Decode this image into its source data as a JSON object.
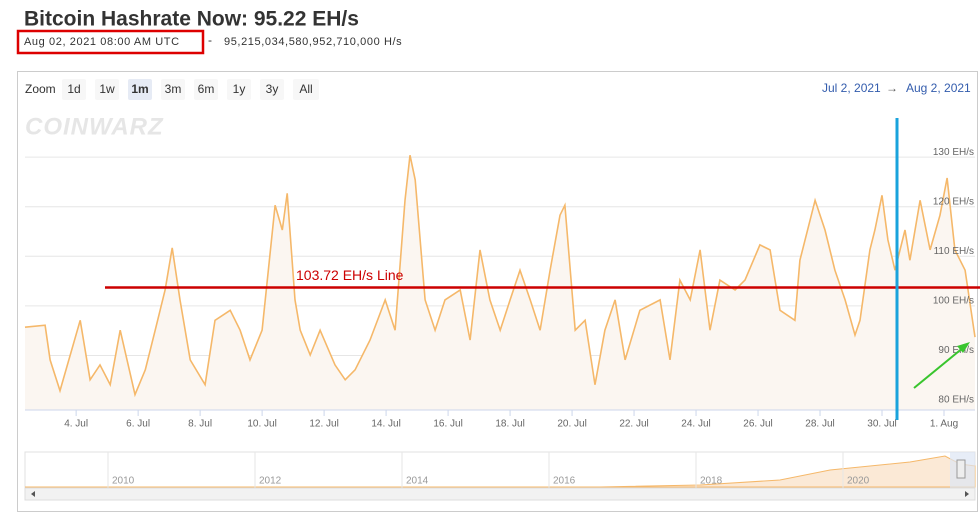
{
  "header": {
    "title": "Bitcoin Hashrate Now: 95.22 EH/s",
    "timestamp": "Aug 02, 2021 08:00 AM UTC",
    "separator": "-",
    "hashrate": "95,215,034,580,952,710,000 H/s"
  },
  "toolbar": {
    "zoom_label": "Zoom",
    "zoom_buttons": [
      "1d",
      "1w",
      "1m",
      "3m",
      "6m",
      "1y",
      "3y",
      "All"
    ],
    "selected": "1m",
    "range_from": "Jul 2, 2021",
    "range_arrow": "→",
    "range_to": "Aug 2, 2021"
  },
  "watermark": "COINWARZ",
  "navigator": {
    "labels": [
      "2010",
      "2012",
      "2014",
      "2016",
      "2018",
      "2020"
    ]
  },
  "chart_data": {
    "type": "line",
    "color": "#f5b86a",
    "fill": "#fbf6f1",
    "x": [
      2.35,
      3.0,
      3.16,
      3.48,
      4.13,
      4.45,
      4.77,
      5.1,
      5.42,
      5.9,
      6.23,
      6.55,
      6.87,
      7.1,
      7.35,
      7.68,
      8.16,
      8.48,
      8.97,
      9.29,
      9.61,
      10.0,
      10.42,
      10.65,
      10.81,
      11.06,
      11.23,
      11.55,
      11.87,
      12.35,
      12.68,
      13.0,
      13.48,
      13.97,
      14.29,
      14.61,
      14.77,
      14.94,
      15.26,
      15.58,
      15.9,
      16.39,
      16.71,
      17.03,
      17.35,
      17.68,
      18.0,
      18.32,
      18.65,
      18.97,
      19.29,
      19.61,
      19.77,
      20.1,
      20.42,
      20.74,
      21.06,
      21.39,
      21.71,
      22.19,
      22.84,
      23.16,
      23.48,
      23.81,
      24.13,
      24.45,
      24.77,
      25.26,
      25.58,
      26.06,
      26.39,
      26.71,
      27.19,
      27.35,
      27.84,
      28.16,
      28.48,
      28.81,
      29.13,
      29.29,
      29.61,
      29.77,
      30.0,
      30.19,
      30.42,
      30.74,
      30.9,
      31.23,
      31.55,
      31.87,
      32.1,
      32.35,
      32.68,
      33.0
    ],
    "values": [
      95.7,
      96.1,
      89.1,
      82.9,
      97.1,
      85.1,
      88.1,
      84.1,
      95.1,
      82.1,
      87.1,
      95.1,
      103.2,
      111.7,
      101.2,
      89.1,
      84.1,
      97.1,
      99.1,
      95.1,
      89.1,
      95.1,
      120.3,
      115.3,
      122.7,
      101.2,
      95.1,
      90.1,
      95.1,
      88.1,
      85.1,
      87.1,
      93.1,
      101.2,
      95.1,
      121.3,
      130.4,
      125.4,
      101.2,
      95.1,
      101.2,
      103.2,
      93.1,
      111.3,
      101.2,
      95.1,
      101.2,
      107.2,
      101.2,
      95.1,
      107.2,
      118.3,
      120.3,
      95.1,
      97.1,
      84.1,
      95.1,
      101.2,
      89.1,
      99.1,
      101.2,
      89.1,
      105.2,
      101.2,
      111.3,
      95.1,
      105.2,
      103.2,
      105.2,
      112.3,
      111.3,
      99.1,
      97.1,
      109.2,
      121.3,
      115.3,
      107.2,
      101.2,
      94.1,
      97.1,
      111.3,
      115.3,
      122.3,
      113.3,
      107.2,
      115.3,
      109.2,
      121.3,
      111.3,
      118.3,
      125.8,
      111.3,
      107.2,
      93.7
    ],
    "xlim": [
      2.35,
      33.0
    ],
    "xticks": [
      {
        "value": 4,
        "label": "4. Jul"
      },
      {
        "value": 6,
        "label": "6. Jul"
      },
      {
        "value": 8,
        "label": "8. Jul"
      },
      {
        "value": 10,
        "label": "10. Jul"
      },
      {
        "value": 12,
        "label": "12. Jul"
      },
      {
        "value": 14,
        "label": "14. Jul"
      },
      {
        "value": 16,
        "label": "16. Jul"
      },
      {
        "value": 18,
        "label": "18. Jul"
      },
      {
        "value": 20,
        "label": "20. Jul"
      },
      {
        "value": 22,
        "label": "22. Jul"
      },
      {
        "value": 24,
        "label": "24. Jul"
      },
      {
        "value": 26,
        "label": "26. Jul"
      },
      {
        "value": 28,
        "label": "28. Jul"
      },
      {
        "value": 30,
        "label": "30. Jul"
      },
      {
        "value": 32,
        "label": "1. Aug"
      }
    ],
    "ylim": [
      79,
      138.5
    ],
    "yticks": [
      {
        "value": 80,
        "label": "80 EH/s"
      },
      {
        "value": 90,
        "label": "90 EH/s"
      },
      {
        "value": 100,
        "label": "100 EH/s"
      },
      {
        "value": 110,
        "label": "110 EH/s"
      },
      {
        "value": 120,
        "label": "120 EH/s"
      },
      {
        "value": 130,
        "label": "130 EH/s"
      }
    ],
    "grid": true,
    "reference_line": {
      "value": 103.72,
      "label": "103.72 EH/s Line",
      "color": "#cc0000"
    }
  }
}
